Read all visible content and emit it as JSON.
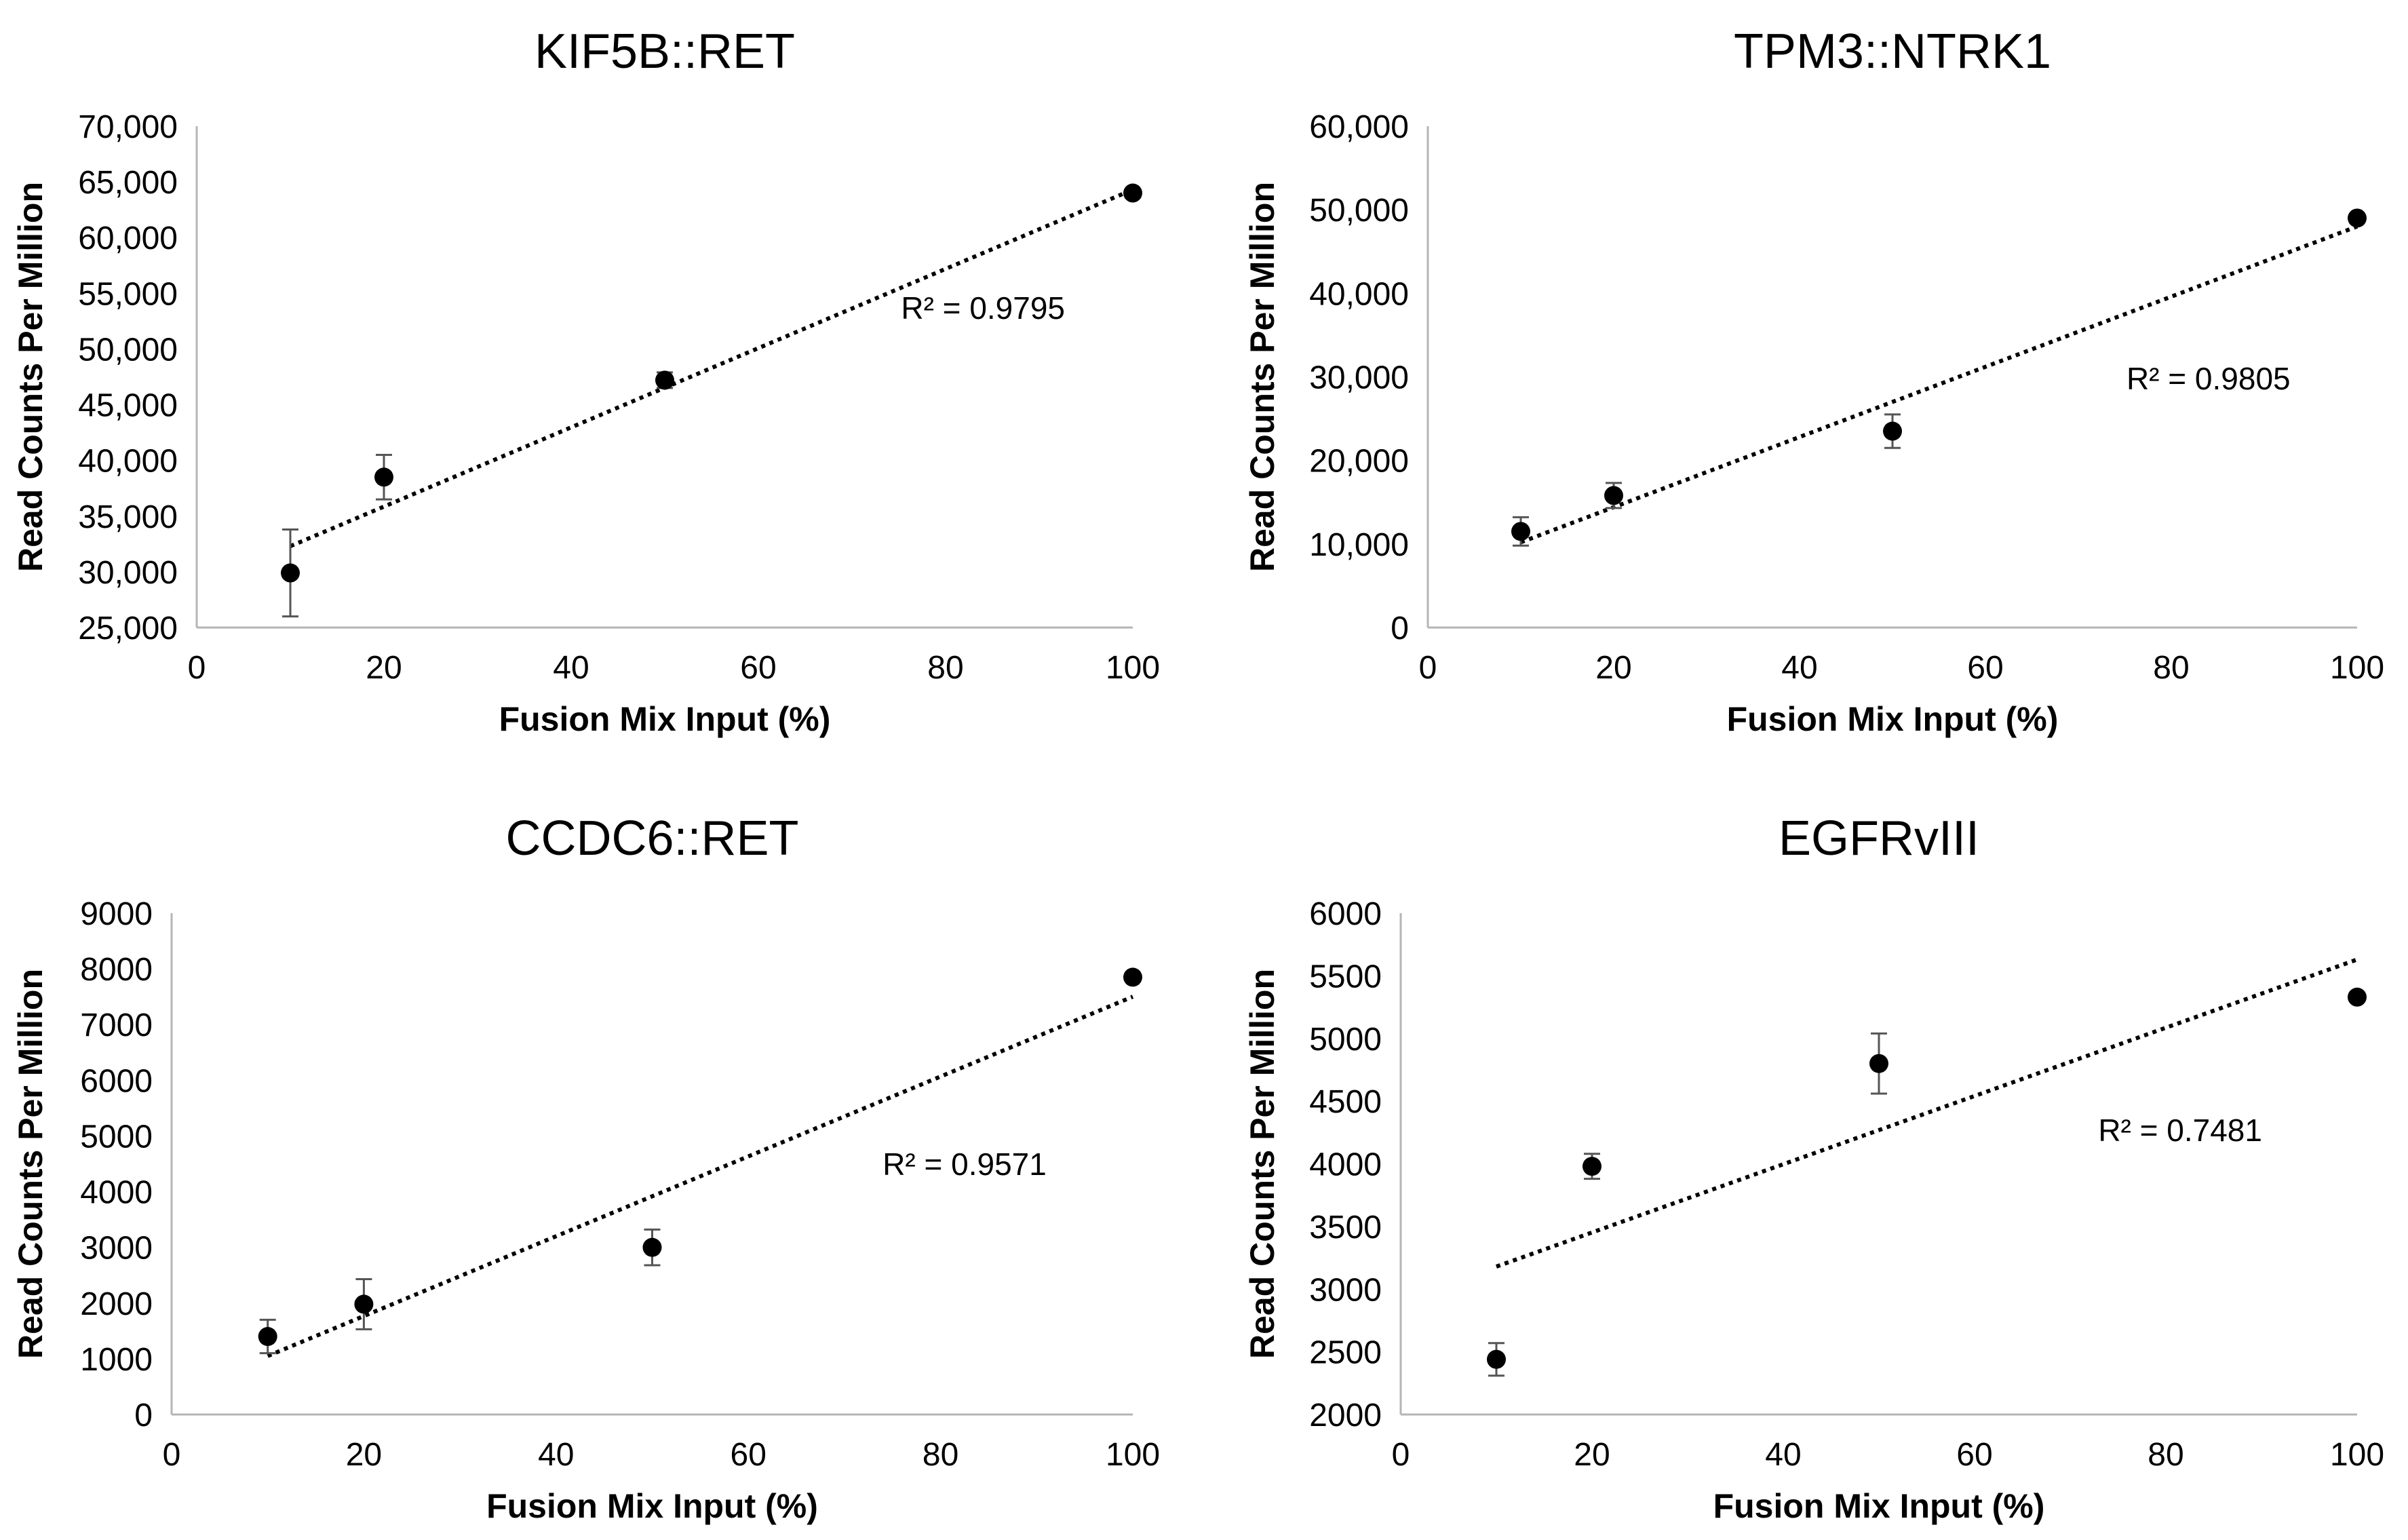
{
  "chart_data": [
    {
      "type": "scatter",
      "title": "KIF5B::RET",
      "xlabel": "Fusion Mix Input (%)",
      "ylabel": "Read Counts Per Million",
      "xlim": [
        0,
        100
      ],
      "ylim": [
        25000,
        70000
      ],
      "x_ticks": [
        0,
        20,
        40,
        60,
        80,
        100
      ],
      "y_ticks": [
        25000,
        30000,
        35000,
        40000,
        45000,
        50000,
        55000,
        60000,
        65000,
        70000
      ],
      "x_tick_labels": [
        "0",
        "20",
        "40",
        "60",
        "80",
        "100"
      ],
      "y_tick_labels": [
        "25,000",
        "30,000",
        "35,000",
        "40,000",
        "45,000",
        "50,000",
        "55,000",
        "60,000",
        "65,000",
        "70,000"
      ],
      "points": [
        {
          "x": 10,
          "y": 29900,
          "err": 3900
        },
        {
          "x": 20,
          "y": 38500,
          "err": 2000
        },
        {
          "x": 50,
          "y": 47200,
          "err": 700
        },
        {
          "x": 100,
          "y": 64000,
          "err": 0
        }
      ],
      "trendline": {
        "x": [
          10,
          100
        ],
        "y": [
          32300,
          64300
        ],
        "style": "dotted"
      },
      "annotation": "R² = 0.9795",
      "annotation_pos": {
        "x": 84,
        "y": 52700
      }
    },
    {
      "type": "scatter",
      "title": "TPM3::NTRK1",
      "xlabel": "Fusion Mix Input (%)",
      "ylabel": "Read Counts Per Million",
      "xlim": [
        0,
        100
      ],
      "ylim": [
        0,
        60000
      ],
      "x_ticks": [
        0,
        20,
        40,
        60,
        80,
        100
      ],
      "y_ticks": [
        0,
        10000,
        20000,
        30000,
        40000,
        50000,
        60000
      ],
      "x_tick_labels": [
        "0",
        "20",
        "40",
        "60",
        "80",
        "100"
      ],
      "y_tick_labels": [
        "0",
        "10,000",
        "20,000",
        "30,000",
        "40,000",
        "50,000",
        "60,000"
      ],
      "points": [
        {
          "x": 10,
          "y": 11500,
          "err": 1700
        },
        {
          "x": 20,
          "y": 15800,
          "err": 1500
        },
        {
          "x": 50,
          "y": 23500,
          "err": 2000
        },
        {
          "x": 100,
          "y": 49000,
          "err": 0
        }
      ],
      "trendline": {
        "x": [
          10,
          100
        ],
        "y": [
          10200,
          48000
        ],
        "style": "dotted"
      },
      "annotation": "R² = 0.9805",
      "annotation_pos": {
        "x": 84,
        "y": 28500
      }
    },
    {
      "type": "scatter",
      "title": "CCDC6::RET",
      "xlabel": "Fusion Mix Input (%)",
      "ylabel": "Read Counts Per Million",
      "xlim": [
        0,
        100
      ],
      "ylim": [
        0,
        9000
      ],
      "x_ticks": [
        0,
        20,
        40,
        60,
        80,
        100
      ],
      "y_ticks": [
        0,
        1000,
        2000,
        3000,
        4000,
        5000,
        6000,
        7000,
        8000,
        9000
      ],
      "x_tick_labels": [
        "0",
        "20",
        "40",
        "60",
        "80",
        "100"
      ],
      "y_tick_labels": [
        "0",
        "1000",
        "2000",
        "3000",
        "4000",
        "5000",
        "6000",
        "7000",
        "8000",
        "9000"
      ],
      "points": [
        {
          "x": 10,
          "y": 1400,
          "err": 300
        },
        {
          "x": 20,
          "y": 1980,
          "err": 450
        },
        {
          "x": 50,
          "y": 3000,
          "err": 320
        },
        {
          "x": 100,
          "y": 7850,
          "err": 0
        }
      ],
      "trendline": {
        "x": [
          10,
          100
        ],
        "y": [
          1050,
          7500
        ],
        "style": "dotted"
      },
      "annotation": "R² = 0.9571",
      "annotation_pos": {
        "x": 82.5,
        "y": 4300
      }
    },
    {
      "type": "scatter",
      "title": "EGFRvIII",
      "xlabel": "Fusion Mix Input (%)",
      "ylabel": "Read Counts Per Million",
      "xlim": [
        0,
        100
      ],
      "ylim": [
        2000,
        6000
      ],
      "x_ticks": [
        0,
        20,
        40,
        60,
        80,
        100
      ],
      "y_ticks": [
        2000,
        2500,
        3000,
        3500,
        4000,
        4500,
        5000,
        5500,
        6000
      ],
      "x_tick_labels": [
        "0",
        "20",
        "40",
        "60",
        "80",
        "100"
      ],
      "y_tick_labels": [
        "2000",
        "2500",
        "3000",
        "3500",
        "4000",
        "4500",
        "5000",
        "5500",
        "6000"
      ],
      "points": [
        {
          "x": 10,
          "y": 2440,
          "err": 130
        },
        {
          "x": 20,
          "y": 3980,
          "err": 100
        },
        {
          "x": 50,
          "y": 4800,
          "err": 240
        },
        {
          "x": 100,
          "y": 5330,
          "err": 0
        }
      ],
      "trendline": {
        "x": [
          10,
          100
        ],
        "y": [
          3180,
          5630
        ],
        "style": "dotted"
      },
      "annotation": "R² = 0.7481",
      "annotation_pos": {
        "x": 81.5,
        "y": 4180
      }
    }
  ]
}
